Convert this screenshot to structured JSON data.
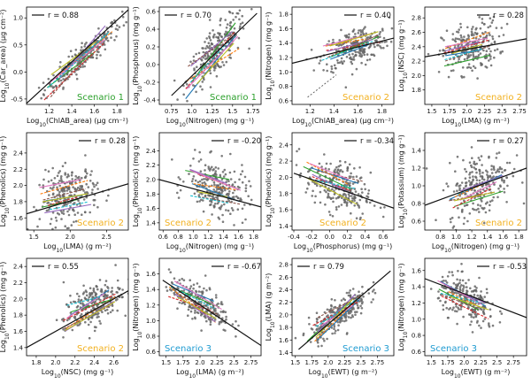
{
  "colors": {
    "points": "#666666",
    "fit_line": "#111111",
    "scenario_1": "#2ca02c",
    "scenario_2": "#f2b01e",
    "scenario_3": "#1f9bd1",
    "group_lines": [
      "#1f77b4",
      "#ff7f0e",
      "#2ca02c",
      "#d62728",
      "#9467bd",
      "#8c564b",
      "#e377c2",
      "#17becf",
      "#bcbd22"
    ]
  },
  "chart_data": [
    {
      "type": "scatter",
      "xlabel": "Log10(ChlAB_area) (μg cm⁻²)",
      "ylabel": "Log10(Car_area) (μg cm⁻²)",
      "xlim": [
        1.0,
        1.9
      ],
      "ylim": [
        -0.6,
        1.2
      ],
      "xticks": [
        1.2,
        1.4,
        1.6,
        1.8
      ],
      "yticks": [
        -0.5,
        0.0,
        0.5,
        1.0
      ],
      "r_label": "r = 0.88",
      "r": 0.88,
      "scenario": "Scenario 1",
      "scenario_key": "scenario_1",
      "scenario_pos": "br",
      "cx": 1.5,
      "cy": 0.28,
      "sx": 0.17,
      "slope": 1.8,
      "noise": 0.12,
      "fit": [
        [
          1.0,
          -0.58
        ],
        [
          1.9,
          1.15
        ]
      ],
      "dashed": null
    },
    {
      "type": "scatter",
      "xlabel": "Log10(Nitrogen) (mg g⁻¹)",
      "ylabel": "Log10(Phosphorus) (mg g⁻¹)",
      "xlim": [
        0.6,
        1.85
      ],
      "ylim": [
        -0.45,
        0.65
      ],
      "xticks": [
        0.75,
        1.0,
        1.25,
        1.5,
        1.75
      ],
      "yticks": [
        -0.4,
        -0.2,
        0.0,
        0.2,
        0.4,
        0.6
      ],
      "r_label": "r = 0.70",
      "r": 0.7,
      "scenario": "Scenario 1",
      "scenario_key": "scenario_1",
      "scenario_pos": "br",
      "cx": 1.3,
      "cy": 0.15,
      "sx": 0.18,
      "slope": 0.9,
      "noise": 0.13,
      "fit": [
        [
          0.75,
          -0.35
        ],
        [
          1.8,
          0.58
        ]
      ],
      "dashed": null
    },
    {
      "type": "scatter",
      "xlabel": "Log10(ChlAB_area) (μg cm⁻²)",
      "ylabel": "Log10(Nitrogen) (mg g⁻¹)",
      "xlim": [
        1.05,
        1.9
      ],
      "ylim": [
        0.55,
        1.9
      ],
      "xticks": [
        1.2,
        1.4,
        1.6,
        1.8
      ],
      "yticks": [
        0.6,
        0.8,
        1.0,
        1.2,
        1.4,
        1.6,
        1.8
      ],
      "r_label": "r = 0.40",
      "r": 0.4,
      "scenario": "Scenario 2",
      "scenario_key": "scenario_2",
      "scenario_pos": "br",
      "cx": 1.58,
      "cy": 1.35,
      "sx": 0.14,
      "slope": 0.5,
      "noise": 0.13,
      "fit": [
        [
          1.05,
          1.12
        ],
        [
          1.9,
          1.47
        ]
      ],
      "dashed": [
        [
          1.18,
          0.65
        ],
        [
          1.42,
          0.96
        ]
      ]
    },
    {
      "type": "scatter",
      "xlabel": "Log10(LMA) (g m⁻²)",
      "ylabel": "Log10(NSC) (mg g⁻¹)",
      "xlim": [
        1.4,
        2.85
      ],
      "ylim": [
        1.6,
        2.95
      ],
      "xticks": [
        1.5,
        1.75,
        2.0,
        2.25,
        2.5,
        2.75
      ],
      "yticks": [
        1.8,
        2.0,
        2.2,
        2.4,
        2.6,
        2.8
      ],
      "r_label": "r = 0.28",
      "r": 0.28,
      "scenario": "Scenario 2",
      "scenario_key": "scenario_2",
      "scenario_pos": "br",
      "cx": 2.05,
      "cy": 2.38,
      "sx": 0.2,
      "slope": 0.25,
      "noise": 0.17,
      "fit": [
        [
          1.4,
          2.26
        ],
        [
          2.85,
          2.51
        ]
      ],
      "dashed": null
    },
    {
      "type": "scatter",
      "xlabel": "Log10(LMA) (g m⁻²)",
      "ylabel": "Log10(Phenolics) (mg g⁻¹)",
      "xlim": [
        1.4,
        2.8
      ],
      "ylim": [
        1.45,
        2.65
      ],
      "xticks": [
        1.5,
        2.0,
        2.5
      ],
      "yticks": [
        1.6,
        1.8,
        2.0,
        2.2,
        2.4
      ],
      "r_label": "r = 0.28",
      "r": 0.28,
      "scenario": "Scenario 2",
      "scenario_key": "scenario_2",
      "scenario_pos": "br",
      "cx": 1.98,
      "cy": 1.88,
      "sx": 0.2,
      "slope": 0.22,
      "noise": 0.17,
      "fit": [
        [
          1.4,
          1.65
        ],
        [
          2.8,
          2.02
        ]
      ],
      "dashed": null
    },
    {
      "type": "scatter",
      "xlabel": "Log10(Nitrogen) (mg g⁻¹)",
      "ylabel": "Log10(Phenolics) (mg g⁻¹)",
      "xlim": [
        0.55,
        1.9
      ],
      "ylim": [
        1.3,
        2.65
      ],
      "xticks": [
        0.6,
        0.8,
        1.0,
        1.2,
        1.4,
        1.6,
        1.8
      ],
      "yticks": [
        1.4,
        1.6,
        1.8,
        2.0,
        2.2,
        2.4
      ],
      "r_label": "r = -0.20",
      "r": -0.2,
      "scenario": "Scenario 2",
      "scenario_key": "scenario_2",
      "scenario_pos": "bl",
      "cx": 1.32,
      "cy": 1.88,
      "sx": 0.2,
      "slope": -0.28,
      "noise": 0.18,
      "fit": [
        [
          0.55,
          2.0
        ],
        [
          1.9,
          1.62
        ]
      ],
      "dashed": null
    },
    {
      "type": "scatter",
      "xlabel": "Log10(Phosphorus) (mg g⁻¹)",
      "ylabel": "Log10(Phenolics) (mg g⁻¹)",
      "xlim": [
        -0.42,
        0.72
      ],
      "ylim": [
        1.35,
        2.55
      ],
      "xticks": [
        -0.4,
        -0.2,
        0.0,
        0.2,
        0.4,
        0.6
      ],
      "yticks": [
        1.4,
        1.6,
        1.8,
        2.0,
        2.2,
        2.4
      ],
      "r_label": "r = -0.34",
      "r": -0.34,
      "scenario": "Scenario 2",
      "scenario_key": "scenario_2",
      "scenario_pos": "bc",
      "cx": 0.1,
      "cy": 1.88,
      "sx": 0.18,
      "slope": -0.4,
      "noise": 0.16,
      "fit": [
        [
          -0.4,
          2.05
        ],
        [
          0.72,
          1.62
        ]
      ],
      "dashed": null
    },
    {
      "type": "scatter",
      "xlabel": "Log10(Nitrogen) (mg g⁻¹)",
      "ylabel": "Log10(Potassium) (mg g⁻¹)",
      "xlim": [
        0.6,
        1.9
      ],
      "ylim": [
        0.5,
        1.6
      ],
      "xticks": [
        0.8,
        1.0,
        1.2,
        1.4,
        1.6,
        1.8
      ],
      "yticks": [
        0.6,
        0.8,
        1.0,
        1.2,
        1.4
      ],
      "r_label": "r = 0.27",
      "r": 0.27,
      "scenario": "Scenario 2",
      "scenario_key": "scenario_2",
      "scenario_pos": "br",
      "cx": 1.3,
      "cy": 1.02,
      "sx": 0.2,
      "slope": 0.3,
      "noise": 0.18,
      "fit": [
        [
          0.6,
          0.78
        ],
        [
          1.9,
          1.2
        ]
      ],
      "dashed": null
    },
    {
      "type": "scatter",
      "xlabel": "Log10(NSC) (mg g⁻¹)",
      "ylabel": "Log10(Phenolics) (mg g⁻¹)",
      "xlim": [
        1.7,
        2.75
      ],
      "ylim": [
        1.3,
        2.5
      ],
      "xticks": [
        1.8,
        2.0,
        2.2,
        2.4,
        2.6
      ],
      "yticks": [
        1.4,
        1.6,
        1.8,
        2.0,
        2.2,
        2.4
      ],
      "r_label": "r = 0.55",
      "r": 0.55,
      "scenario": "Scenario 2",
      "scenario_key": "scenario_2",
      "scenario_pos": "br",
      "cx": 2.38,
      "cy": 1.92,
      "sx": 0.15,
      "slope": 0.6,
      "noise": 0.13,
      "fit": [
        [
          1.7,
          1.4
        ],
        [
          2.75,
          2.1
        ]
      ],
      "dashed": null
    },
    {
      "type": "scatter",
      "xlabel": "Log10(LMA) (g m⁻²)",
      "ylabel": "Log10(Nitrogen) (mg g⁻¹)",
      "xlim": [
        1.4,
        2.9
      ],
      "ylim": [
        0.55,
        1.8
      ],
      "xticks": [
        1.5,
        1.75,
        2.0,
        2.25,
        2.5,
        2.75
      ],
      "yticks": [
        0.6,
        0.8,
        1.0,
        1.2,
        1.4,
        1.6
      ],
      "r_label": "r = -0.67",
      "r": -0.67,
      "scenario": "Scenario 3",
      "scenario_key": "scenario_3",
      "scenario_pos": "bl",
      "cx": 2.0,
      "cy": 1.22,
      "sx": 0.22,
      "slope": -0.45,
      "noise": 0.11,
      "fit": [
        [
          1.45,
          1.52
        ],
        [
          2.9,
          0.68
        ]
      ],
      "dashed": null
    },
    {
      "type": "scatter",
      "xlabel": "Log10(EWT) (g m⁻²)",
      "ylabel": "Log10(LMA) (g m⁻²)",
      "xlim": [
        1.45,
        3.0
      ],
      "ylim": [
        1.35,
        2.9
      ],
      "xticks": [
        1.5,
        1.75,
        2.0,
        2.25,
        2.5,
        2.75
      ],
      "yticks": [
        1.4,
        1.6,
        1.8,
        2.0,
        2.2,
        2.4,
        2.6,
        2.8
      ],
      "r_label": "r = 0.79",
      "r": 0.79,
      "scenario": "Scenario 3",
      "scenario_key": "scenario_3",
      "scenario_pos": "br",
      "cx": 2.15,
      "cy": 2.0,
      "sx": 0.22,
      "slope": 0.75,
      "noise": 0.13,
      "fit": [
        [
          1.55,
          1.45
        ],
        [
          2.95,
          2.7
        ]
      ],
      "dashed": null
    },
    {
      "type": "scatter",
      "xlabel": "Log10(EWT) (g m⁻²)",
      "ylabel": "Log10(Nitrogen) (mg g⁻¹)",
      "xlim": [
        1.4,
        2.95
      ],
      "ylim": [
        0.55,
        1.75
      ],
      "xticks": [
        1.5,
        1.75,
        2.0,
        2.25,
        2.5,
        2.75
      ],
      "yticks": [
        0.6,
        0.8,
        1.0,
        1.2,
        1.4,
        1.6
      ],
      "r_label": "r = -0.53",
      "r": -0.53,
      "scenario": "Scenario 3",
      "scenario_key": "scenario_3",
      "scenario_pos": "bl",
      "cx": 2.05,
      "cy": 1.22,
      "sx": 0.22,
      "slope": -0.35,
      "noise": 0.13,
      "fit": [
        [
          1.4,
          1.5
        ],
        [
          2.95,
          1.02
        ]
      ],
      "dashed": null
    }
  ]
}
